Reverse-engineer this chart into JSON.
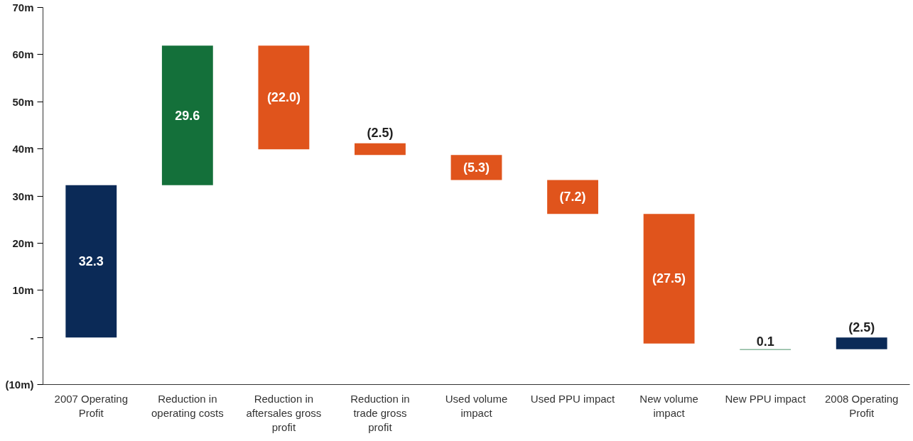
{
  "chart_data": {
    "type": "bar",
    "categories": [
      "2007 Operating Profit",
      "Reduction in operating costs",
      "Reduction in aftersales gross profit",
      "Reduction in trade gross profit",
      "Used volume impact",
      "Used PPU impact",
      "New volume impact",
      "New PPU impact",
      "2008 Operating Profit"
    ],
    "values": [
      32.3,
      29.6,
      -22.0,
      -2.5,
      -5.3,
      -7.2,
      -27.5,
      0.1,
      -2.5
    ],
    "base": [
      0,
      32.3,
      61.9,
      41.2,
      38.7,
      33.4,
      26.2,
      -2.6,
      0
    ],
    "colors": [
      "#0b2a57",
      "#14703a",
      "#e0541c",
      "#e0541c",
      "#e0541c",
      "#e0541c",
      "#e0541c",
      "#14703a",
      "#0b2a57"
    ],
    "value_labels": [
      "32.3",
      "29.6",
      "(22.0)",
      "(2.5)",
      "(5.3)",
      "(7.2)",
      "(27.5)",
      "0.1",
      "(2.5)"
    ],
    "ylim": [
      -10,
      70
    ],
    "yticks": [
      {
        "value": -10,
        "label": "(10m)"
      },
      {
        "value": 0,
        "label": "-"
      },
      {
        "value": 10,
        "label": "10m"
      },
      {
        "value": 20,
        "label": "20m"
      },
      {
        "value": 30,
        "label": "30m"
      },
      {
        "value": 40,
        "label": "40m"
      },
      {
        "value": 50,
        "label": "50m"
      },
      {
        "value": 60,
        "label": "60m"
      },
      {
        "value": 70,
        "label": "70m"
      }
    ],
    "grid": false
  }
}
